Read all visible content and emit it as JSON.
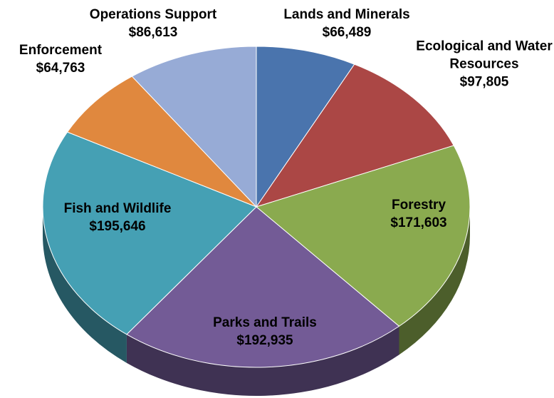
{
  "chart_data": {
    "type": "pie",
    "categories": [
      "Lands and Minerals",
      "Ecological and Water Resources",
      "Forestry",
      "Parks and Trails",
      "Fish and Wildlife",
      "Enforcement",
      "Operations Support"
    ],
    "values": [
      66489,
      97805,
      171603,
      192935,
      195646,
      64763,
      86613
    ],
    "value_labels": [
      "$66,489",
      "$97,805",
      "$171,603",
      "$192,935",
      "$195,646",
      "$64,763",
      "$86,613"
    ],
    "colors": [
      "#4a74ad",
      "#ab4745",
      "#8aaa4f",
      "#735b96",
      "#45a0b4",
      "#e0883e",
      "#97abd6"
    ]
  }
}
